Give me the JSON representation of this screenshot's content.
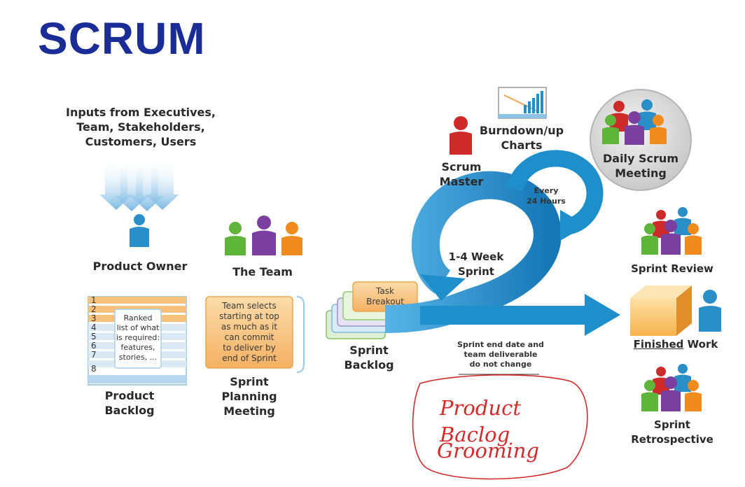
{
  "title": "SCRUM",
  "inputs_label": "Inputs from Executives,\nTeam, Stakeholders,\nCustomers, Users",
  "product_owner": "Product Owner",
  "the_team": "The Team",
  "product_backlog": {
    "rows": [
      "1",
      "2",
      "3",
      "4",
      "5",
      "6",
      "7",
      "8"
    ],
    "note": "Ranked\nlist of what\nis required:\nfeatures,\nstories, ...",
    "label": "Product\nBacklog"
  },
  "sprint_planning": {
    "note": "Team selects\nstarting at top\nas much as it\ncan commit\nto deliver by\nend of Sprint",
    "label": "Sprint\nPlanning\nMeeting"
  },
  "task_breakout": "Task\nBreakout",
  "sprint_backlog": "Sprint\nBacklog",
  "sprint_cycle": "1-4 Week\nSprint",
  "every_24": "Every\n24 Hours",
  "scrum_master": "Scrum\nMaster",
  "burndown": "Burndown/up\nCharts",
  "daily_scrum": "Daily Scrum\nMeeting",
  "sprint_review": "Sprint Review",
  "finished_word": "Finished",
  "finished_rest": " Work",
  "sprint_end_note": "Sprint end date and\nteam deliverable\ndo not change",
  "sprint_retro": "Sprint\nRetrospective",
  "handwriting": {
    "line1": "Product Baclog",
    "line2": "Grooming"
  },
  "colors": {
    "title": "#1a2c96",
    "arrow_blue": "#1f8fcc",
    "person_blue": "#2a8fc7",
    "person_red": "#cf2a2a",
    "person_green": "#5fb43a",
    "person_purple": "#7b3fa0",
    "person_orange": "#f08c1e",
    "backlog_orange": "#f6c27b",
    "handwriting": "#d42a2a"
  }
}
